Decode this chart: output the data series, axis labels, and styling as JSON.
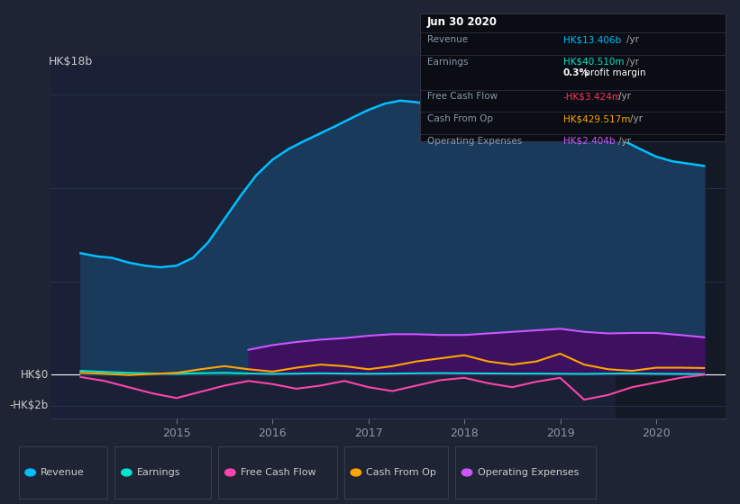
{
  "bg_color": "#1e2433",
  "plot_bg_color": "#1e2433",
  "chart_area_color": "#1a2035",
  "grid_color": "#2d3a52",
  "y_label": "HK$18b",
  "y_zero_label": "HK$0",
  "y_neg_label": "-HK$2b",
  "ylim": [
    -2800000000.0,
    20500000000.0
  ],
  "xlim_min": 2013.7,
  "xlim_max": 2020.72,
  "y_gridlines": [
    18000000000.0,
    12000000000.0,
    6000000000.0,
    0,
    -2000000000.0
  ],
  "tooltip": {
    "date": "Jun 30 2020",
    "rows": [
      {
        "label": "Revenue",
        "value": "HK$13.406b",
        "unit": "/yr",
        "color": "#00bfff"
      },
      {
        "label": "Earnings",
        "value": "HK$40.510m",
        "unit": "/yr",
        "color": "#00e5cc",
        "sub_value": "0.3%",
        "sub_text": " profit margin",
        "sub_color": "#ffffff"
      },
      {
        "label": "Free Cash Flow",
        "value": "-HK$3.424m",
        "unit": "/yr",
        "color": "#ff3355"
      },
      {
        "label": "Cash From Op",
        "value": "HK$429.517m",
        "unit": "/yr",
        "color": "#ffa500"
      },
      {
        "label": "Operating Expenses",
        "value": "HK$2.404b",
        "unit": "/yr",
        "color": "#cc55ff"
      }
    ]
  },
  "legend_items": [
    {
      "label": "Revenue",
      "color": "#00bfff"
    },
    {
      "label": "Earnings",
      "color": "#00e5cc"
    },
    {
      "label": "Free Cash Flow",
      "color": "#ff44aa"
    },
    {
      "label": "Cash From Op",
      "color": "#ffa500"
    },
    {
      "label": "Operating Expenses",
      "color": "#cc55ff"
    }
  ],
  "revenue_x": [
    2014.0,
    2014.17,
    2014.33,
    2014.5,
    2014.67,
    2014.83,
    2015.0,
    2015.17,
    2015.33,
    2015.5,
    2015.67,
    2015.83,
    2016.0,
    2016.17,
    2016.33,
    2016.5,
    2016.67,
    2016.83,
    2017.0,
    2017.17,
    2017.33,
    2017.5,
    2017.67,
    2017.83,
    2018.0,
    2018.17,
    2018.33,
    2018.5,
    2018.67,
    2018.83,
    2019.0,
    2019.17,
    2019.33,
    2019.5,
    2019.67,
    2019.83,
    2020.0,
    2020.17,
    2020.5
  ],
  "revenue_y": [
    7800000000.0,
    7600000000.0,
    7500000000.0,
    7200000000.0,
    7000000000.0,
    6900000000.0,
    7000000000.0,
    7500000000.0,
    8500000000.0,
    10000000000.0,
    11500000000.0,
    12800000000.0,
    13800000000.0,
    14500000000.0,
    15000000000.0,
    15500000000.0,
    16000000000.0,
    16500000000.0,
    17000000000.0,
    17400000000.0,
    17600000000.0,
    17500000000.0,
    17300000000.0,
    17000000000.0,
    16800000000.0,
    16700000000.0,
    16600000000.0,
    16500000000.0,
    16500000000.0,
    16600000000.0,
    16700000000.0,
    16500000000.0,
    16000000000.0,
    15500000000.0,
    15000000000.0,
    14500000000.0,
    14000000000.0,
    13700000000.0,
    13406000000.0
  ],
  "revenue_color": "#00bfff",
  "revenue_fill": "#1a3a5c",
  "earnings_x": [
    2014.0,
    2014.25,
    2014.5,
    2014.75,
    2015.0,
    2015.25,
    2015.5,
    2015.75,
    2016.0,
    2016.25,
    2016.5,
    2016.75,
    2017.0,
    2017.25,
    2017.5,
    2017.75,
    2018.0,
    2018.25,
    2018.5,
    2018.75,
    2019.0,
    2019.25,
    2019.5,
    2019.75,
    2020.0,
    2020.25,
    2020.5
  ],
  "earnings_y": [
    250000000.0,
    180000000.0,
    120000000.0,
    80000000.0,
    60000000.0,
    100000000.0,
    120000000.0,
    80000000.0,
    50000000.0,
    70000000.0,
    90000000.0,
    70000000.0,
    60000000.0,
    70000000.0,
    90000000.0,
    100000000.0,
    90000000.0,
    80000000.0,
    70000000.0,
    70000000.0,
    60000000.0,
    50000000.0,
    70000000.0,
    80000000.0,
    60000000.0,
    50000000.0,
    40510000.0
  ],
  "earnings_color": "#00e5cc",
  "fcf_x": [
    2014.0,
    2014.25,
    2014.5,
    2014.75,
    2015.0,
    2015.25,
    2015.5,
    2015.75,
    2016.0,
    2016.25,
    2016.5,
    2016.75,
    2017.0,
    2017.25,
    2017.5,
    2017.75,
    2018.0,
    2018.25,
    2018.5,
    2018.75,
    2019.0,
    2019.25,
    2019.5,
    2019.75,
    2020.0,
    2020.25,
    2020.5
  ],
  "fcf_y": [
    -150000000.0,
    -400000000.0,
    -800000000.0,
    -1200000000.0,
    -1500000000.0,
    -1100000000.0,
    -700000000.0,
    -400000000.0,
    -600000000.0,
    -900000000.0,
    -700000000.0,
    -400000000.0,
    -800000000.0,
    -1050000000.0,
    -700000000.0,
    -350000000.0,
    -200000000.0,
    -550000000.0,
    -800000000.0,
    -450000000.0,
    -200000000.0,
    -1600000000.0,
    -1300000000.0,
    -800000000.0,
    -500000000.0,
    -200000000.0,
    -3424000.0
  ],
  "fcf_color": "#ff44aa",
  "cop_x": [
    2014.0,
    2014.25,
    2014.5,
    2014.75,
    2015.0,
    2015.25,
    2015.5,
    2015.75,
    2016.0,
    2016.25,
    2016.5,
    2016.75,
    2017.0,
    2017.25,
    2017.5,
    2017.75,
    2018.0,
    2018.25,
    2018.5,
    2018.75,
    2019.0,
    2019.25,
    2019.5,
    2019.75,
    2020.0,
    2020.25,
    2020.5
  ],
  "cop_y": [
    120000000.0,
    60000000.0,
    -20000000.0,
    50000000.0,
    120000000.0,
    350000000.0,
    550000000.0,
    350000000.0,
    200000000.0,
    450000000.0,
    650000000.0,
    550000000.0,
    350000000.0,
    550000000.0,
    850000000.0,
    1050000000.0,
    1250000000.0,
    850000000.0,
    650000000.0,
    850000000.0,
    1350000000.0,
    650000000.0,
    350000000.0,
    250000000.0,
    450000000.0,
    450000000.0,
    429500000.0
  ],
  "cop_color": "#ffa500",
  "opex_x": [
    2015.75,
    2016.0,
    2016.25,
    2016.5,
    2016.75,
    2017.0,
    2017.25,
    2017.5,
    2017.75,
    2018.0,
    2018.25,
    2018.5,
    2018.75,
    2019.0,
    2019.25,
    2019.5,
    2019.75,
    2020.0,
    2020.25,
    2020.5
  ],
  "opex_y": [
    1600000000.0,
    1900000000.0,
    2100000000.0,
    2250000000.0,
    2350000000.0,
    2500000000.0,
    2600000000.0,
    2600000000.0,
    2550000000.0,
    2550000000.0,
    2650000000.0,
    2750000000.0,
    2850000000.0,
    2950000000.0,
    2750000000.0,
    2650000000.0,
    2680000000.0,
    2680000000.0,
    2550000000.0,
    2404000000.0
  ],
  "opex_color": "#cc55ff",
  "opex_fill": "#3d1060",
  "dark_band_start": 2019.58,
  "dark_band_color": "#141926"
}
